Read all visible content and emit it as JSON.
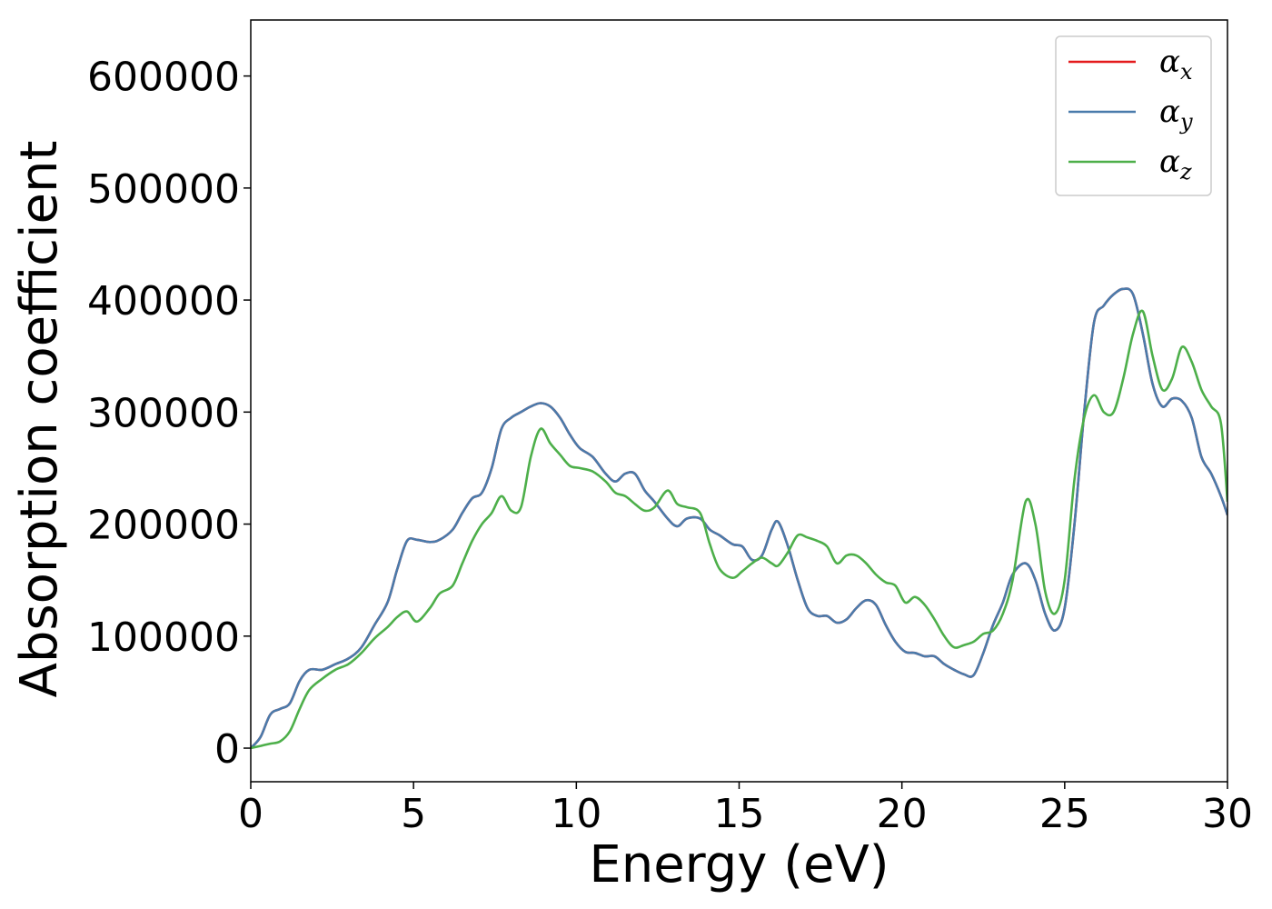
{
  "chart_data": {
    "type": "line",
    "xlabel": "Energy (eV)",
    "ylabel": "Absorption coefficient",
    "xlim": [
      0,
      30
    ],
    "ylim": [
      -30000,
      650000
    ],
    "xticks": [
      0,
      5,
      10,
      15,
      20,
      25,
      30
    ],
    "yticks": [
      0,
      100000,
      200000,
      300000,
      400000,
      500000,
      600000
    ],
    "grid": false,
    "legend_position": "top-right",
    "series": [
      {
        "name": "α_x",
        "label_base": "α",
        "label_sub": "x",
        "color": "#e41a1c",
        "x": [
          0,
          0.3,
          0.6,
          0.9,
          1.2,
          1.5,
          1.8,
          2.2,
          2.6,
          3.0,
          3.4,
          3.8,
          4.2,
          4.5,
          4.8,
          5.1,
          5.5,
          5.8,
          6.2,
          6.5,
          6.8,
          7.1,
          7.4,
          7.7,
          8.0,
          8.3,
          8.6,
          8.9,
          9.2,
          9.5,
          9.8,
          10.1,
          10.5,
          10.9,
          11.2,
          11.5,
          11.8,
          12.1,
          12.4,
          12.8,
          13.1,
          13.4,
          13.8,
          14.1,
          14.4,
          14.8,
          15.1,
          15.4,
          15.7,
          16.0,
          16.2,
          16.5,
          16.8,
          17.1,
          17.4,
          17.7,
          18.0,
          18.3,
          18.6,
          18.9,
          19.2,
          19.5,
          19.8,
          20.1,
          20.4,
          20.7,
          21.0,
          21.3,
          21.6,
          21.9,
          22.2,
          22.5,
          22.8,
          23.1,
          23.4,
          23.8,
          24.1,
          24.4,
          24.7,
          25.0,
          25.3,
          25.6,
          25.9,
          26.2,
          26.5,
          26.8,
          27.1,
          27.4,
          27.7,
          28.0,
          28.3,
          28.6,
          28.9,
          29.2,
          29.5,
          29.8,
          30.0
        ],
        "y": [
          0,
          10000,
          30000,
          35000,
          40000,
          60000,
          70000,
          70000,
          75000,
          80000,
          90000,
          110000,
          130000,
          160000,
          185000,
          186000,
          184000,
          186000,
          195000,
          210000,
          223000,
          228000,
          250000,
          285000,
          295000,
          300000,
          305000,
          308000,
          305000,
          295000,
          280000,
          268000,
          260000,
          245000,
          238000,
          245000,
          245000,
          230000,
          220000,
          205000,
          198000,
          205000,
          205000,
          195000,
          190000,
          182000,
          180000,
          168000,
          172000,
          195000,
          202000,
          180000,
          150000,
          125000,
          118000,
          118000,
          112000,
          115000,
          125000,
          132000,
          128000,
          110000,
          95000,
          86000,
          85000,
          82000,
          82000,
          75000,
          70000,
          66000,
          65000,
          85000,
          110000,
          130000,
          155000,
          165000,
          150000,
          120000,
          105000,
          125000,
          200000,
          300000,
          380000,
          395000,
          405000,
          410000,
          405000,
          370000,
          325000,
          305000,
          312000,
          310000,
          295000,
          260000,
          245000,
          225000,
          208000
        ]
      },
      {
        "name": "α_y",
        "label_base": "α",
        "label_sub": "y",
        "color": "#4a7bab",
        "x": [
          0,
          0.3,
          0.6,
          0.9,
          1.2,
          1.5,
          1.8,
          2.2,
          2.6,
          3.0,
          3.4,
          3.8,
          4.2,
          4.5,
          4.8,
          5.1,
          5.5,
          5.8,
          6.2,
          6.5,
          6.8,
          7.1,
          7.4,
          7.7,
          8.0,
          8.3,
          8.6,
          8.9,
          9.2,
          9.5,
          9.8,
          10.1,
          10.5,
          10.9,
          11.2,
          11.5,
          11.8,
          12.1,
          12.4,
          12.8,
          13.1,
          13.4,
          13.8,
          14.1,
          14.4,
          14.8,
          15.1,
          15.4,
          15.7,
          16.0,
          16.2,
          16.5,
          16.8,
          17.1,
          17.4,
          17.7,
          18.0,
          18.3,
          18.6,
          18.9,
          19.2,
          19.5,
          19.8,
          20.1,
          20.4,
          20.7,
          21.0,
          21.3,
          21.6,
          21.9,
          22.2,
          22.5,
          22.8,
          23.1,
          23.4,
          23.8,
          24.1,
          24.4,
          24.7,
          25.0,
          25.3,
          25.6,
          25.9,
          26.2,
          26.5,
          26.8,
          27.1,
          27.4,
          27.7,
          28.0,
          28.3,
          28.6,
          28.9,
          29.2,
          29.5,
          29.8,
          30.0
        ],
        "y": [
          0,
          10000,
          30000,
          35000,
          40000,
          60000,
          70000,
          70000,
          75000,
          80000,
          90000,
          110000,
          130000,
          160000,
          185000,
          186000,
          184000,
          186000,
          195000,
          210000,
          223000,
          228000,
          250000,
          285000,
          295000,
          300000,
          305000,
          308000,
          305000,
          295000,
          280000,
          268000,
          260000,
          245000,
          238000,
          245000,
          245000,
          230000,
          220000,
          205000,
          198000,
          205000,
          205000,
          195000,
          190000,
          182000,
          180000,
          168000,
          172000,
          195000,
          202000,
          180000,
          150000,
          125000,
          118000,
          118000,
          112000,
          115000,
          125000,
          132000,
          128000,
          110000,
          95000,
          86000,
          85000,
          82000,
          82000,
          75000,
          70000,
          66000,
          65000,
          85000,
          110000,
          130000,
          155000,
          165000,
          150000,
          120000,
          105000,
          125000,
          200000,
          300000,
          380000,
          395000,
          405000,
          410000,
          405000,
          370000,
          325000,
          305000,
          312000,
          310000,
          295000,
          260000,
          245000,
          225000,
          208000
        ]
      },
      {
        "name": "α_z",
        "label_base": "α",
        "label_sub": "z",
        "color": "#4daf4a",
        "x": [
          0,
          0.3,
          0.6,
          0.9,
          1.2,
          1.5,
          1.8,
          2.2,
          2.6,
          3.0,
          3.4,
          3.8,
          4.2,
          4.5,
          4.8,
          5.1,
          5.5,
          5.8,
          6.2,
          6.5,
          6.8,
          7.1,
          7.4,
          7.7,
          8.0,
          8.3,
          8.6,
          8.9,
          9.2,
          9.5,
          9.8,
          10.1,
          10.5,
          10.9,
          11.2,
          11.5,
          11.8,
          12.1,
          12.4,
          12.8,
          13.1,
          13.4,
          13.8,
          14.1,
          14.4,
          14.8,
          15.1,
          15.4,
          15.7,
          16.0,
          16.2,
          16.5,
          16.8,
          17.1,
          17.4,
          17.7,
          18.0,
          18.3,
          18.6,
          18.9,
          19.2,
          19.5,
          19.8,
          20.1,
          20.4,
          20.7,
          21.0,
          21.3,
          21.6,
          21.9,
          22.2,
          22.5,
          22.8,
          23.1,
          23.4,
          23.8,
          24.1,
          24.4,
          24.7,
          25.0,
          25.3,
          25.6,
          25.9,
          26.2,
          26.5,
          26.8,
          27.1,
          27.4,
          27.7,
          28.0,
          28.3,
          28.6,
          28.9,
          29.2,
          29.5,
          29.8,
          30.0
        ],
        "y": [
          0,
          2000,
          4000,
          6000,
          15000,
          35000,
          52000,
          62000,
          70000,
          75000,
          85000,
          98000,
          108000,
          117000,
          122000,
          113000,
          125000,
          138000,
          145000,
          165000,
          185000,
          200000,
          210000,
          225000,
          212000,
          215000,
          260000,
          285000,
          272000,
          262000,
          252000,
          250000,
          247000,
          238000,
          228000,
          225000,
          218000,
          212000,
          215000,
          230000,
          218000,
          215000,
          210000,
          182000,
          160000,
          152000,
          158000,
          165000,
          170000,
          165000,
          163000,
          175000,
          190000,
          188000,
          185000,
          180000,
          165000,
          172000,
          172000,
          165000,
          155000,
          148000,
          145000,
          130000,
          135000,
          128000,
          115000,
          100000,
          90000,
          92000,
          95000,
          102000,
          105000,
          120000,
          150000,
          220000,
          200000,
          140000,
          120000,
          150000,
          240000,
          295000,
          315000,
          300000,
          300000,
          330000,
          370000,
          390000,
          350000,
          320000,
          330000,
          358000,
          345000,
          320000,
          305000,
          290000,
          220000
        ]
      }
    ]
  }
}
